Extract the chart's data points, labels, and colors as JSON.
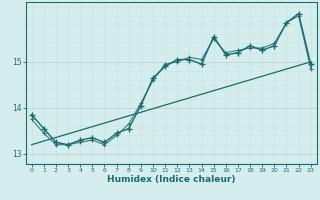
{
  "xlabel": "Humidex (Indice chaleur)",
  "ylabel": "",
  "background_color": "#d5eeed",
  "line_color": "#1a6b6b",
  "grid_color_v": "#c8e4e4",
  "grid_color_h": "#c8bfcc",
  "xlim": [
    -0.5,
    23.5
  ],
  "ylim": [
    12.78,
    16.3
  ],
  "yticks": [
    13,
    14,
    15
  ],
  "xticks": [
    0,
    1,
    2,
    3,
    4,
    5,
    6,
    7,
    8,
    9,
    10,
    11,
    12,
    13,
    14,
    15,
    16,
    17,
    18,
    19,
    20,
    21,
    22,
    23
  ],
  "main_curve_x": [
    0,
    1,
    2,
    3,
    4,
    5,
    6,
    7,
    8,
    9,
    10,
    11,
    12,
    13,
    14,
    15,
    16,
    17,
    18,
    19,
    20,
    21,
    22,
    23
  ],
  "main_curve_y": [
    13.85,
    13.55,
    13.25,
    13.2,
    13.3,
    13.35,
    13.25,
    13.45,
    13.55,
    14.05,
    14.65,
    14.9,
    15.05,
    15.05,
    14.95,
    15.55,
    15.15,
    15.2,
    15.35,
    15.25,
    15.35,
    15.85,
    16.05,
    14.95
  ],
  "trend_line_x": [
    0,
    23
  ],
  "trend_line_y": [
    13.2,
    15.0
  ],
  "smooth_curve_x": [
    0,
    1,
    2,
    3,
    4,
    5,
    6,
    7,
    8,
    9,
    10,
    11,
    12,
    13,
    14,
    15,
    16,
    17,
    18,
    19,
    20,
    21,
    22,
    23
  ],
  "smooth_curve_y": [
    13.75,
    13.45,
    13.2,
    13.2,
    13.25,
    13.3,
    13.2,
    13.4,
    13.65,
    14.1,
    14.6,
    14.95,
    15.0,
    15.1,
    15.05,
    15.5,
    15.2,
    15.25,
    15.3,
    15.3,
    15.4,
    15.85,
    16.0,
    14.85
  ]
}
